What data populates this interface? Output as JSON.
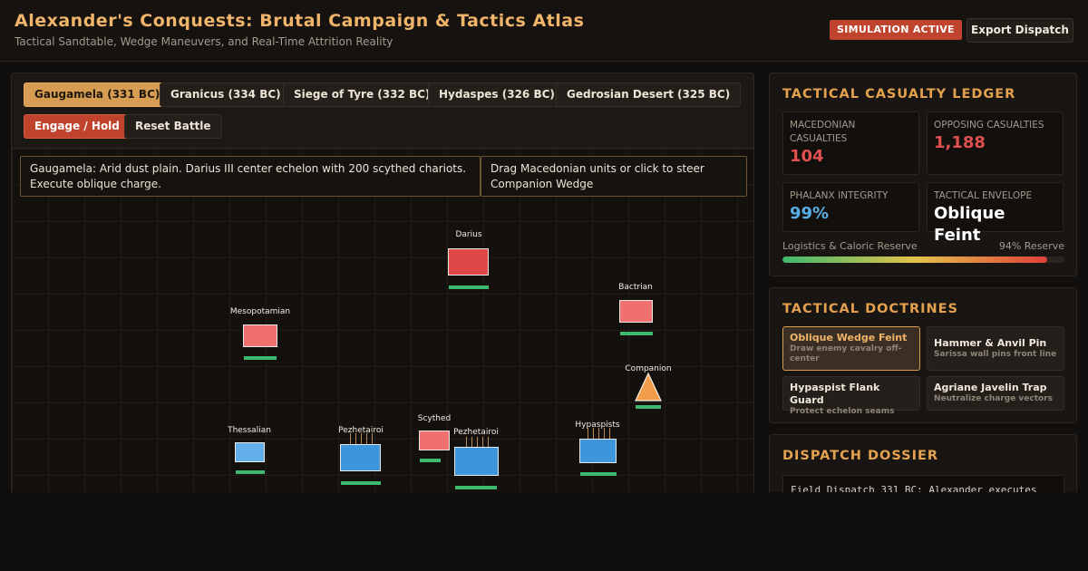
{
  "header": {
    "title": "Alexander's Conquests: Brutal Campaign & Tactics Atlas",
    "subtitle": "Tactical Sandtable, Wedge Maneuvers, and Real-Time Attrition Reality",
    "status_badge": "SIMULATION ACTIVE",
    "export_label": "Export Dispatch"
  },
  "battles": [
    {
      "label": "Gaugamela (331 BC)",
      "active": true
    },
    {
      "label": "Granicus (334 BC)",
      "active": false
    },
    {
      "label": "Siege of Tyre (332 BC)",
      "active": false
    },
    {
      "label": "Hydaspes (326 BC)",
      "active": false
    },
    {
      "label": "Gedrosian Desert (325 BC)",
      "active": false
    }
  ],
  "controls": {
    "engage_label": "Engage / Hold",
    "reset_label": "Reset Battle"
  },
  "map": {
    "briefing": "Gaugamela: Arid dust plain. Darius III center echelon with 200 scythed chariots. Execute oblique charge.",
    "hint": "Drag Macedonian units or click to steer Companion Wedge"
  },
  "units": [
    {
      "label": "Darius",
      "side": "enemy"
    },
    {
      "label": "Bactrian",
      "side": "enemy"
    },
    {
      "label": "Mesopotamian",
      "side": "enemy"
    },
    {
      "label": "Companion",
      "side": "ally"
    },
    {
      "label": "Thessalian",
      "side": "ally"
    },
    {
      "label": "Pezhetairoi",
      "side": "ally"
    },
    {
      "label": "Scythed",
      "side": "enemy"
    },
    {
      "label": "Pezhetairoi",
      "side": "ally"
    },
    {
      "label": "Hypaspists",
      "side": "ally"
    }
  ],
  "ledger": {
    "title": "TACTICAL CASUALTY LEDGER",
    "macedonian_label": "MACEDONIAN CASUALTIES",
    "macedonian_value": "104",
    "opposing_label": "OPPOSING CASUALTIES",
    "opposing_value": "1,188",
    "phalanx_label": "PHALANX INTEGRITY",
    "phalanx_value": "99%",
    "envelope_label": "TACTICAL ENVELOPE",
    "envelope_value": "Oblique Feint",
    "reserve_label": "Logistics & Caloric Reserve",
    "reserve_value": "94% Reserve",
    "reserve_fraction": 0.94,
    "colors": {
      "macedonian": "#e05050",
      "opposing": "#e05050",
      "phalanx": "#5aaee8",
      "envelope": "#ffffff"
    }
  },
  "doctrines": {
    "title": "TACTICAL DOCTRINES",
    "items": [
      {
        "name": "Oblique Wedge Feint",
        "desc": "Draw enemy cavalry off-center",
        "active": true
      },
      {
        "name": "Hammer & Anvil Pin",
        "desc": "Sarissa wall pins front line",
        "active": false
      },
      {
        "name": "Hypaspist Flank Guard",
        "desc": "Protect echelon seams",
        "active": false
      },
      {
        "name": "Agriane Javelin Trap",
        "desc": "Neutralize charge vectors",
        "active": false
      }
    ]
  },
  "dossier": {
    "title": "DISPATCH DOSSIER",
    "text": "Field Dispatch 331 BC: Alexander executes"
  }
}
